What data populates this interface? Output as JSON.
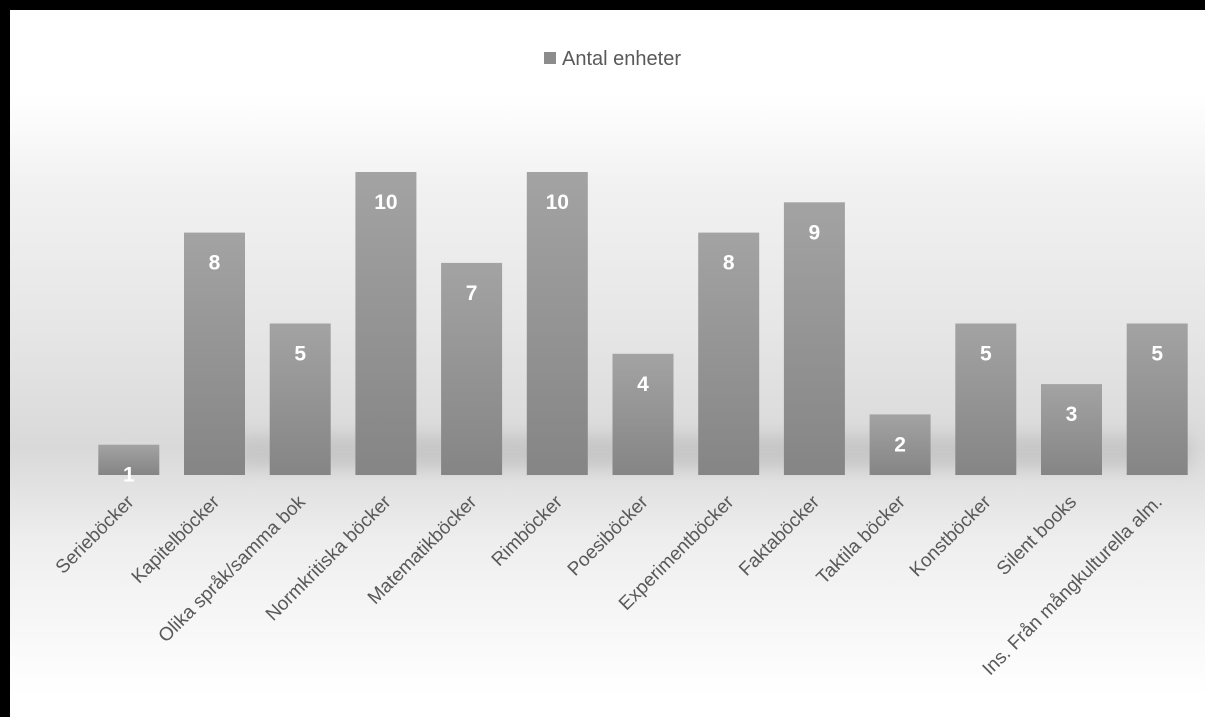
{
  "chart_data": {
    "type": "bar",
    "categories": [
      "Serieböcker",
      "Kapitelböcker",
      "Olika språk/samma bok",
      "Normkritiska böcker",
      "Matematikböcker",
      "Rimböcker",
      "Poesiböcker",
      "Experimentböcker",
      "Faktaböcker",
      "Taktila böcker",
      "Konstböcker",
      "Silent books",
      "Ins. Från mångkulturella alm."
    ],
    "series": [
      {
        "name": "Antal enheter",
        "values": [
          1,
          8,
          5,
          10,
          7,
          10,
          4,
          8,
          9,
          2,
          5,
          3,
          5
        ]
      }
    ],
    "ylim": [
      0,
      10
    ],
    "grid": false,
    "legend_position": "top",
    "bar_color": "#8c8c8c",
    "label_color": "#ffffff",
    "axis_label_color": "#595959"
  }
}
